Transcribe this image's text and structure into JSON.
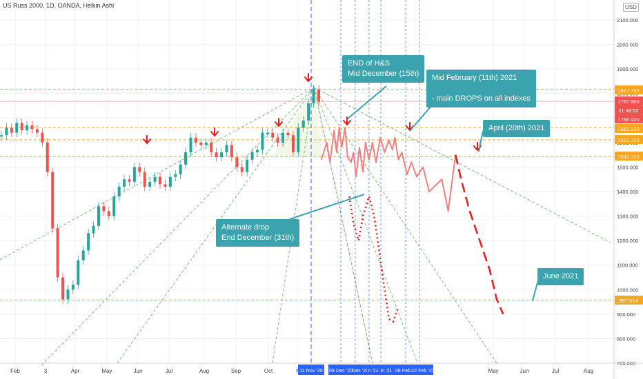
{
  "header": {
    "title": "US Russ 2000, 1D, OANDA, Heikin Ashi",
    "currency": "USD"
  },
  "colors": {
    "up": "#26a69a",
    "down": "#ef5350",
    "projection": "#f08080",
    "dash_red": "#e52020",
    "level": "#f5a623",
    "guide": "#4caf50",
    "vline": "#2962ff",
    "callout": "#3aa3ae",
    "arrow": "#e31b1b"
  },
  "axis": {
    "y_ticks": [
      "2100.000",
      "2000.000",
      "1900.000",
      "1800.000",
      "1700.000",
      "1600.000",
      "1500.000",
      "1400.000",
      "1300.000",
      "1200.000",
      "1100.000",
      "1000.000",
      "900.000",
      "800.000",
      "700.000"
    ],
    "x_ticks": [
      "Feb",
      "3",
      "Apr",
      "May",
      "Jun",
      "Jul",
      "Aug",
      "Sep",
      "Oct",
      "N",
      "May",
      "Jun",
      "Jul",
      "Aug"
    ]
  },
  "price_labels": [
    {
      "text": "1817.730",
      "bg": "#f5a623"
    },
    {
      "text": "1767.988",
      "bg": "#ef5350"
    },
    {
      "text": "21:48:52",
      "bg": "#ef5350"
    },
    {
      "text": "1766.420",
      "bg": "#ef5350"
    },
    {
      "text": "1661.920",
      "bg": "#f5a623"
    },
    {
      "text": "1610.710",
      "bg": "#f5a623"
    },
    {
      "text": "1542.710",
      "bg": "#f5a623"
    },
    {
      "text": "957.514",
      "bg": "#f5a623"
    }
  ],
  "date_labels": [
    "11 Nov '20",
    "09 Dec '20",
    "Dec '20",
    "n '21",
    "in '21",
    "08 Feb",
    "22 Feb '21"
  ],
  "callouts": [
    {
      "id": "hs",
      "text": "END of H&S\nMid December (15th)"
    },
    {
      "id": "feb",
      "text": "Mid February (11th) 2021\n\n- main DROPS on all indexes"
    },
    {
      "id": "apr",
      "text": "April (20th) 2021"
    },
    {
      "id": "alt",
      "text": "Alternate drop\nEnd December (31th)"
    },
    {
      "id": "jun",
      "text": "June 2021"
    }
  ],
  "chart_data": {
    "type": "line",
    "title": "US Russ 2000, 1D, OANDA, Heikin Ashi",
    "ylim": [
      700,
      2120
    ],
    "levels": [
      1817.73,
      1661.92,
      1610.71,
      1542.71,
      957.514
    ],
    "current_price": [
      1767.988,
      1766.42
    ],
    "series": [
      {
        "type": "candles",
        "values": [
          1630,
          1660,
          1640,
          1680,
          1650,
          1670,
          1655,
          1640,
          1600,
          1480,
          1250,
          1050,
          960,
          1000,
          1020,
          1120,
          1160,
          1230,
          1260,
          1340,
          1320,
          1300,
          1380,
          1420,
          1450,
          1440,
          1500,
          1480,
          1420,
          1440,
          1460,
          1430,
          1420,
          1460,
          1470,
          1510,
          1560,
          1620,
          1600,
          1590,
          1600,
          1560,
          1540,
          1560,
          1590,
          1540,
          1500,
          1480,
          1530,
          1560,
          1570,
          1640,
          1640,
          1620,
          1600,
          1640,
          1630,
          1560,
          1660,
          1690,
          1760,
          1817,
          1767
        ]
      },
      {
        "type": "projection",
        "x_dates": [
          "Nov 20",
          "Nov 25",
          "Nov 28",
          "Dec 2",
          "Dec 5",
          "Dec 8",
          "Dec 11",
          "Dec 15",
          "Dec 18",
          "Dec 22",
          "Dec 25",
          "Dec 28",
          "Jan 1",
          "Jan 5",
          "Jan 8",
          "Jan 12",
          "Jan 16",
          "Jan 20",
          "Jan 25",
          "Jan 30",
          "Feb 4",
          "Feb 8",
          "Feb 11",
          "Feb 15",
          "Feb 19",
          "Feb 25",
          "Mar 2",
          "Mar 8",
          "Mar 15",
          "Mar 22",
          "Apr 5",
          "Apr 12",
          "Apr 20"
        ],
        "values": [
          1530,
          1600,
          1520,
          1650,
          1560,
          1660,
          1580,
          1660,
          1540,
          1520,
          1560,
          1460,
          1580,
          1480,
          1600,
          1530,
          1600,
          1520,
          1620,
          1560,
          1610,
          1570,
          1620,
          1530,
          1560,
          1470,
          1520,
          1460,
          1500,
          1400,
          1450,
          1320,
          1550
        ]
      },
      {
        "type": "june_target",
        "x_dates": [
          "Apr 20",
          "Apr 26",
          "May 5",
          "May 15",
          "May 25",
          "Jun 1",
          "Jun 8"
        ],
        "values": [
          1550,
          1450,
          1320,
          1200,
          1080,
          960,
          900
        ]
      },
      {
        "type": "alternate",
        "x_dates": [
          "Dec 20",
          "Dec 25",
          "Dec 31",
          "Jan 5",
          "Jan 12",
          "Jan 18",
          "Jan 24",
          "Jan 30",
          "Feb 4",
          "Feb 9",
          "Feb 14"
        ],
        "values": [
          1380,
          1270,
          1200,
          1300,
          1380,
          1300,
          1150,
          1000,
          880,
          870,
          920
        ]
      }
    ]
  }
}
